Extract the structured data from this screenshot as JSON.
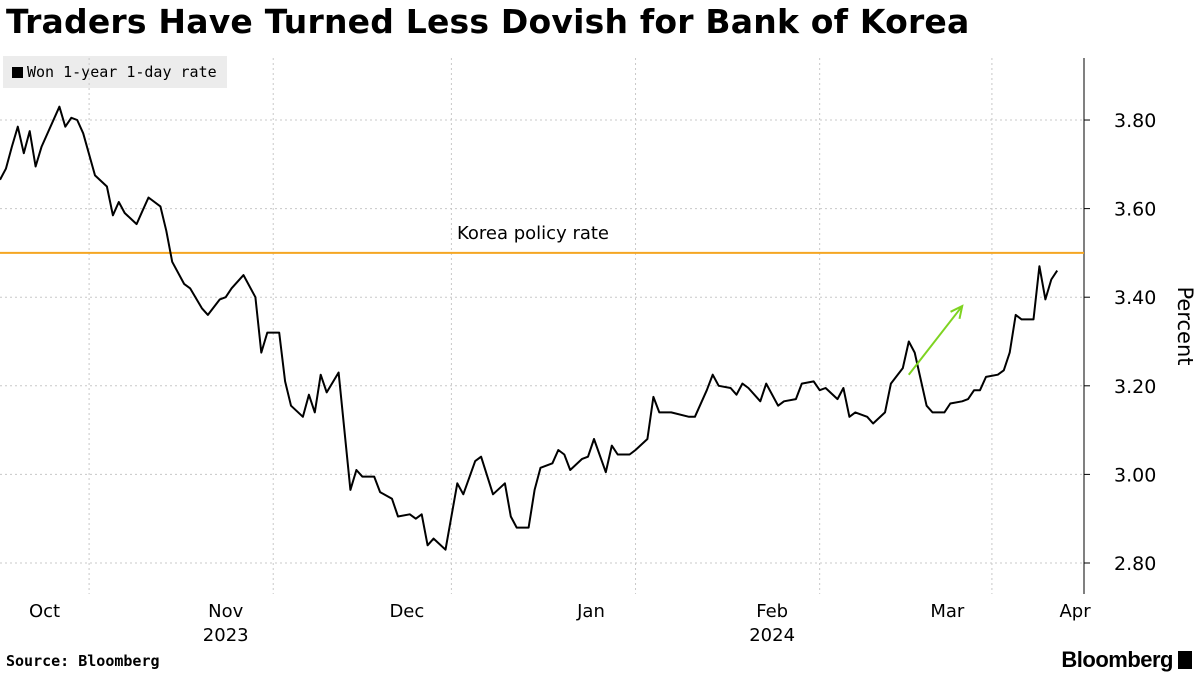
{
  "title": "Traders Have Turned Less Dovish for Bank of Korea",
  "legend": {
    "label": "Won 1-year 1-day rate"
  },
  "source": "Source: Bloomberg",
  "brand": "Bloomberg",
  "colors": {
    "series": "#000000",
    "policy_line": "#f5a623",
    "arrow": "#7ed321",
    "grid": "#c8c8c8"
  },
  "chart_data": {
    "type": "line",
    "title": "Traders Have Turned Less Dovish for Bank of Korea",
    "xlabel": "",
    "ylabel": "Percent",
    "ylim": [
      2.73,
      3.94
    ],
    "yticks": [
      2.8,
      3.0,
      3.2,
      3.4,
      3.6,
      3.8
    ],
    "ytick_labels": [
      "2.80",
      "3.00",
      "3.20",
      "3.40",
      "3.60",
      "3.80"
    ],
    "x_domain": [
      0,
      182
    ],
    "month_labels": [
      {
        "label": "Oct",
        "center": 7.5
      },
      {
        "label": "Nov",
        "center": 38
      },
      {
        "label": "Dec",
        "center": 68.5
      },
      {
        "label": "Jan",
        "center": 99.5
      },
      {
        "label": "Feb",
        "center": 130
      },
      {
        "label": "Mar",
        "center": 159.5
      },
      {
        "label": "Apr",
        "center": 181
      }
    ],
    "month_boundaries": [
      15,
      46,
      76,
      107,
      138,
      167
    ],
    "year_labels": [
      {
        "label": "2023",
        "center": 38
      },
      {
        "label": "2024",
        "center": 130
      }
    ],
    "series": [
      {
        "name": "Won 1-year 1-day rate",
        "points": [
          [
            0,
            3.665
          ],
          [
            1,
            3.69
          ],
          [
            2,
            3.74
          ],
          [
            3,
            3.785
          ],
          [
            4,
            3.725
          ],
          [
            5,
            3.775
          ],
          [
            6,
            3.695
          ],
          [
            7,
            3.74
          ],
          [
            10,
            3.83
          ],
          [
            11,
            3.785
          ],
          [
            12,
            3.805
          ],
          [
            13,
            3.8
          ],
          [
            14,
            3.77
          ],
          [
            16,
            3.675
          ],
          [
            18,
            3.65
          ],
          [
            19,
            3.585
          ],
          [
            20,
            3.615
          ],
          [
            21,
            3.59
          ],
          [
            23,
            3.565
          ],
          [
            24,
            3.595
          ],
          [
            25,
            3.625
          ],
          [
            27,
            3.605
          ],
          [
            28,
            3.55
          ],
          [
            29,
            3.48
          ],
          [
            31,
            3.43
          ],
          [
            32,
            3.42
          ],
          [
            34,
            3.375
          ],
          [
            35,
            3.36
          ],
          [
            37,
            3.395
          ],
          [
            38,
            3.4
          ],
          [
            39,
            3.42
          ],
          [
            41,
            3.45
          ],
          [
            43,
            3.4
          ],
          [
            44,
            3.275
          ],
          [
            45,
            3.32
          ],
          [
            47,
            3.32
          ],
          [
            48,
            3.21
          ],
          [
            49,
            3.155
          ],
          [
            51,
            3.13
          ],
          [
            52,
            3.18
          ],
          [
            53,
            3.14
          ],
          [
            54,
            3.225
          ],
          [
            55,
            3.185
          ],
          [
            57,
            3.23
          ],
          [
            59,
            2.965
          ],
          [
            60,
            3.01
          ],
          [
            61,
            2.995
          ],
          [
            63,
            2.995
          ],
          [
            64,
            2.96
          ],
          [
            66,
            2.945
          ],
          [
            67,
            2.905
          ],
          [
            69,
            2.91
          ],
          [
            70,
            2.9
          ],
          [
            71,
            2.91
          ],
          [
            72,
            2.84
          ],
          [
            73,
            2.855
          ],
          [
            75,
            2.83
          ],
          [
            76,
            2.905
          ],
          [
            77,
            2.98
          ],
          [
            78,
            2.955
          ],
          [
            80,
            3.03
          ],
          [
            81,
            3.04
          ],
          [
            83,
            2.955
          ],
          [
            85,
            2.98
          ],
          [
            86,
            2.905
          ],
          [
            87,
            2.88
          ],
          [
            89,
            2.88
          ],
          [
            90,
            2.965
          ],
          [
            91,
            3.015
          ],
          [
            93,
            3.025
          ],
          [
            94,
            3.055
          ],
          [
            95,
            3.045
          ],
          [
            96,
            3.01
          ],
          [
            98,
            3.035
          ],
          [
            99,
            3.04
          ],
          [
            100,
            3.08
          ],
          [
            102,
            3.005
          ],
          [
            103,
            3.065
          ],
          [
            104,
            3.045
          ],
          [
            106,
            3.045
          ],
          [
            107,
            3.055
          ],
          [
            109,
            3.08
          ],
          [
            110,
            3.175
          ],
          [
            111,
            3.14
          ],
          [
            113,
            3.14
          ],
          [
            116,
            3.13
          ],
          [
            117,
            3.13
          ],
          [
            119,
            3.19
          ],
          [
            120,
            3.225
          ],
          [
            121,
            3.2
          ],
          [
            123,
            3.195
          ],
          [
            124,
            3.18
          ],
          [
            125,
            3.205
          ],
          [
            126,
            3.195
          ],
          [
            128,
            3.165
          ],
          [
            129,
            3.205
          ],
          [
            131,
            3.155
          ],
          [
            132,
            3.165
          ],
          [
            134,
            3.17
          ],
          [
            135,
            3.205
          ],
          [
            137,
            3.21
          ],
          [
            138,
            3.19
          ],
          [
            139,
            3.195
          ],
          [
            141,
            3.17
          ],
          [
            142,
            3.195
          ],
          [
            143,
            3.13
          ],
          [
            144,
            3.14
          ],
          [
            146,
            3.13
          ],
          [
            147,
            3.115
          ],
          [
            149,
            3.14
          ],
          [
            150,
            3.205
          ],
          [
            152,
            3.24
          ],
          [
            153,
            3.3
          ],
          [
            154,
            3.275
          ],
          [
            156,
            3.155
          ],
          [
            157,
            3.14
          ],
          [
            159,
            3.14
          ],
          [
            160,
            3.16
          ],
          [
            162,
            3.165
          ],
          [
            163,
            3.17
          ],
          [
            164,
            3.19
          ],
          [
            165,
            3.19
          ],
          [
            166,
            3.22
          ],
          [
            168,
            3.225
          ],
          [
            169,
            3.235
          ],
          [
            170,
            3.275
          ],
          [
            171,
            3.36
          ],
          [
            172,
            3.35
          ],
          [
            174,
            3.35
          ],
          [
            175,
            3.47
          ],
          [
            176,
            3.395
          ],
          [
            177,
            3.44
          ],
          [
            178,
            3.46
          ]
        ]
      }
    ],
    "reference_lines": [
      {
        "label": "Korea policy rate",
        "value": 3.5
      }
    ],
    "annotations": [
      {
        "type": "arrow",
        "from": [
          153,
          3.225
        ],
        "to": [
          162,
          3.38
        ]
      }
    ]
  }
}
